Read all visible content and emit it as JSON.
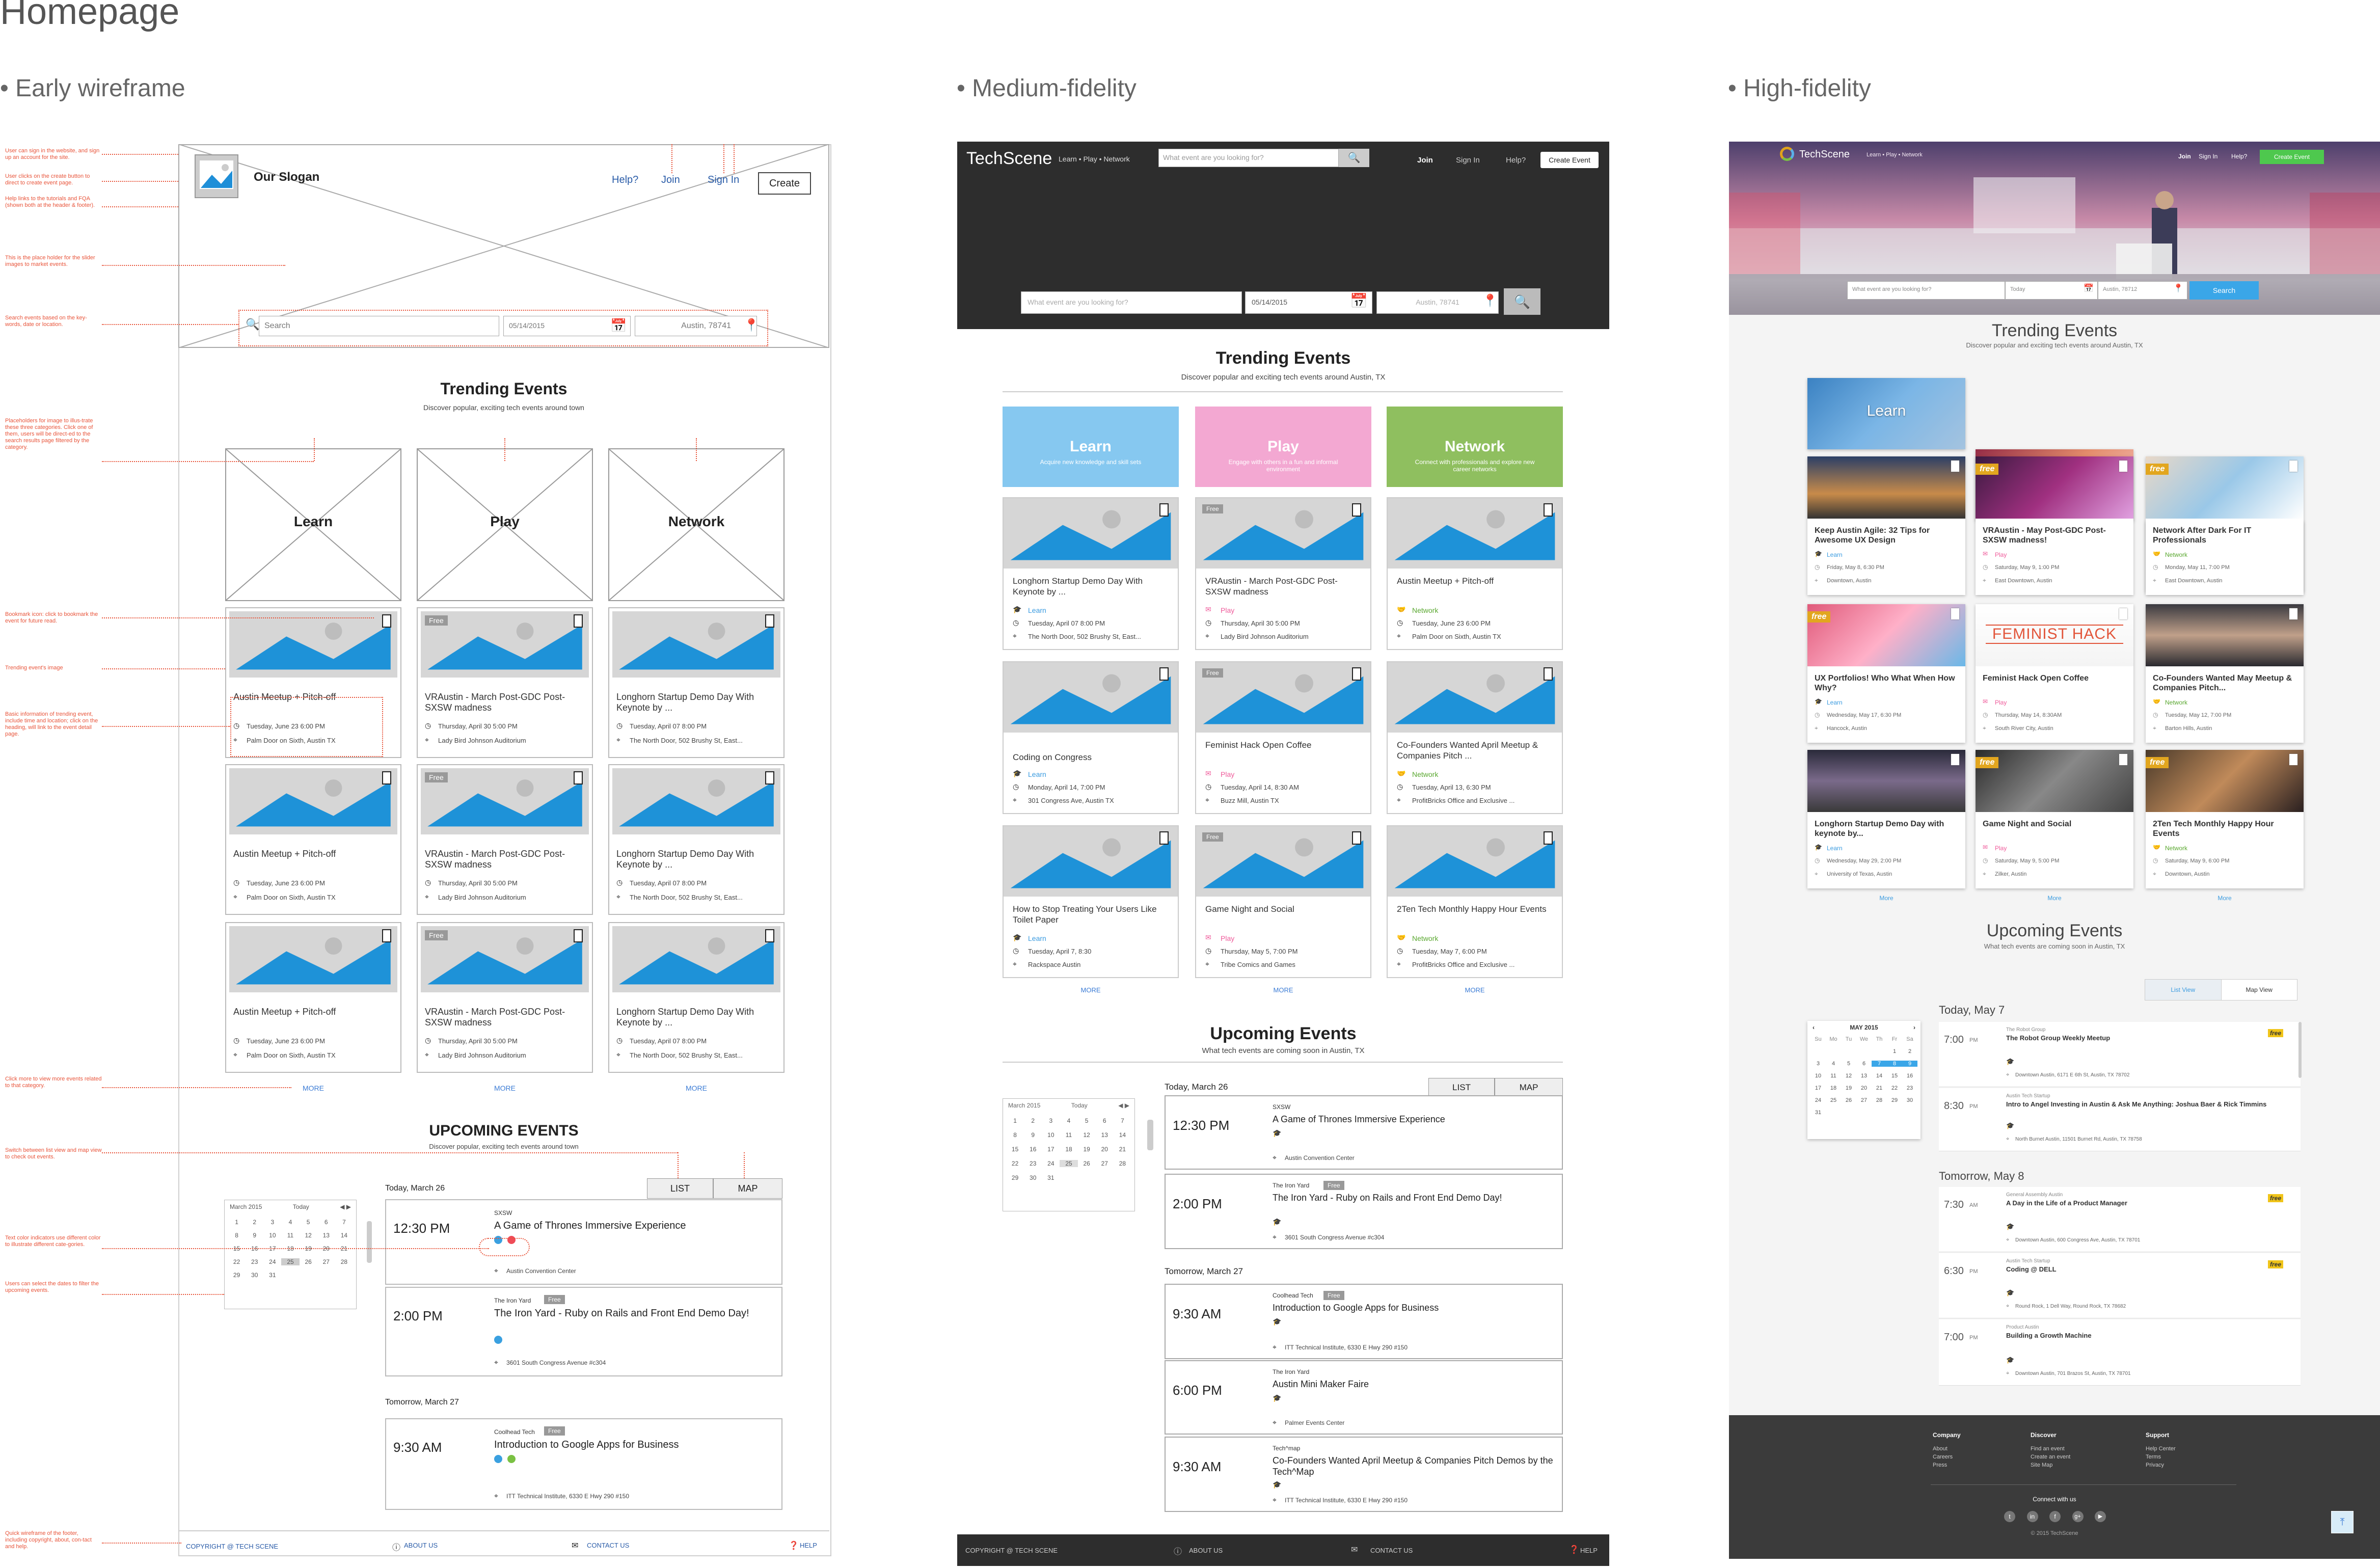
{
  "page_title": "Homepage",
  "columns": {
    "early": "• Early wireframe",
    "medium": "• Medium-fidelity",
    "high": "• High-fidelity"
  },
  "annotations": [
    "User can sign in the website, and sign up an account for the site.",
    "User clicks on the create button to direct to create event page.",
    "Help links to the tutorials and FQA (shown both at the header & footer).",
    "This is the place holder for the slider images to market events.",
    "Search events based on the key-words, date or location.",
    "Placeholders for image to illus-trate these three categories. Click one of them, users will be direct-ed to the search results page filtered by the category.",
    "Bookmark icon: click to bookmark the event for future read.",
    "Trending event's image",
    "Basic information of trending event, include time and location; click on the heading, will link to the event detail page.",
    "Click more to view more events related to that category.",
    "Switch between list view and map view to check out events.",
    "Text color indicators use different color to illustrate different cate-gories.",
    "Users can select the dates to filter the upcoming events.",
    "Quick wireframe of the footer, including copyright, about, con-tact and help."
  ],
  "wireframe": {
    "slogan": "Our Slogan",
    "nav": {
      "help": "Help?",
      "join": "Join",
      "signin": "Sign In",
      "create": "Create"
    },
    "search": {
      "placeholder": "Search",
      "date": "05/14/2015",
      "location": "Austin, 78741"
    },
    "trending": {
      "title": "Trending Events",
      "subtitle": "Discover popular, exciting tech events around town"
    },
    "categories": [
      "Learn",
      "Play",
      "Network"
    ],
    "cards": [
      [
        {
          "title": "Austin Meetup + Pitch-off",
          "time": "Tuesday, June 23 6:00 PM",
          "loc": "Palm Door on Sixth, Austin TX",
          "free": ""
        },
        {
          "title": "Austin Meetup + Pitch-off",
          "time": "Tuesday, June 23 6:00 PM",
          "loc": "Palm Door on Sixth, Austin TX",
          "free": ""
        },
        {
          "title": "Austin Meetup + Pitch-off",
          "time": "Tuesday, June 23 6:00 PM",
          "loc": "Palm Door on Sixth, Austin TX",
          "free": ""
        }
      ],
      [
        {
          "title": "VRAustin - March Post-GDC Post-SXSW madness",
          "time": "Thursday, April 30 5:00 PM",
          "loc": "Lady Bird Johnson Auditorium",
          "free": "Free"
        },
        {
          "title": "VRAustin - March Post-GDC Post-SXSW madness",
          "time": "Thursday, April 30 5:00 PM",
          "loc": "Lady Bird Johnson Auditorium",
          "free": "Free"
        },
        {
          "title": "VRAustin - March Post-GDC Post-SXSW madness",
          "time": "Thursday, April 30 5:00 PM",
          "loc": "Lady Bird Johnson Auditorium",
          "free": "Free"
        }
      ],
      [
        {
          "title": "Longhorn Startup Demo Day With Keynote by ...",
          "time": "Tuesday, April 07 8:00 PM",
          "loc": "The North Door, 502 Brushy St, East...",
          "free": ""
        },
        {
          "title": "Longhorn Startup Demo Day With Keynote by ...",
          "time": "Tuesday, April 07 8:00 PM",
          "loc": "The North Door, 502 Brushy St, East...",
          "free": ""
        },
        {
          "title": "Longhorn Startup Demo Day With Keynote by ...",
          "time": "Tuesday, April 07 8:00 PM",
          "loc": "The North Door, 502 Brushy St, East...",
          "free": ""
        }
      ]
    ],
    "more": "MORE",
    "upcoming": {
      "title": "UPCOMING EVENTS",
      "subtitle": "Discover popular, exciting tech events around town"
    },
    "list_label": "LIST",
    "map_label": "MAP",
    "calendar": {
      "month": "March 2015",
      "today": "Today",
      "days": [
        "1",
        "2",
        "3",
        "4",
        "5",
        "6",
        "7",
        "8",
        "9",
        "10",
        "11",
        "12",
        "13",
        "14",
        "15",
        "16",
        "17",
        "18",
        "19",
        "20",
        "21",
        "22",
        "23",
        "24",
        "25",
        "26",
        "27",
        "28",
        "29",
        "30",
        "31"
      ]
    },
    "day1": "Today, March 26",
    "day2": "Tomorrow, March 27",
    "events": [
      {
        "time": "12:30 PM",
        "org": "SXSW",
        "free": "",
        "title": "A Game of Thrones Immersive Experience",
        "loc": "Austin Convention Center"
      },
      {
        "time": "2:00 PM",
        "org": "The Iron Yard",
        "free": "Free",
        "title": "The Iron Yard - Ruby on Rails and Front End Demo Day!",
        "loc": "3601 South Congress Avenue #c304"
      },
      {
        "time": "9:30 AM",
        "org": "Coolhead Tech",
        "free": "Free",
        "title": "Introduction to Google Apps for Business",
        "loc": "ITT Technical Institute, 6330 E Hwy 290 #150"
      }
    ],
    "footer": {
      "copyright": "COPYRIGHT @ TECH SCENE",
      "about": "ABOUT US",
      "contact": "CONTACT US",
      "help": "HELP"
    }
  },
  "medium": {
    "logo": "TechScene",
    "tagline": "Learn • Play • Network",
    "search_placeholder": "What event are you looking for?",
    "nav": {
      "join": "Join",
      "signin": "Sign In",
      "help": "Help?",
      "create": "Create Event"
    },
    "hero_search": {
      "placeholder": "What event are you looking for?",
      "date": "05/14/2015",
      "location": "Austin, 78741"
    },
    "trending": {
      "title": "Trending Events",
      "subtitle": "Discover popular and exciting tech events around Austin, TX"
    },
    "tiles": [
      {
        "title": "Learn",
        "sub": "Acquire new knowledge and skill sets"
      },
      {
        "title": "Play",
        "sub": "Engage with others in a fun and informal environment"
      },
      {
        "title": "Network",
        "sub": "Connect with professionals and explore new career networks"
      }
    ],
    "cards": [
      [
        {
          "title": "Longhorn Startup Demo Day With Keynote by ...",
          "cat": "Learn",
          "time": "Tuesday, April 07 8:00 PM",
          "loc": "The North Door, 502 Brushy St, East...",
          "free": ""
        },
        {
          "title": "Coding on Congress",
          "cat": "Learn",
          "time": "Monday, April 14, 7:00 PM",
          "loc": "301 Congress Ave, Austin TX",
          "free": ""
        },
        {
          "title": "How to Stop Treating Your Users Like Toilet Paper",
          "cat": "Learn",
          "time": "Tuesday, April 7, 8:30",
          "loc": "Rackspace Austin",
          "free": ""
        }
      ],
      [
        {
          "title": "VRAustin - March Post-GDC Post-SXSW madness",
          "cat": "Play",
          "time": "Thursday, April 30 5:00 PM",
          "loc": "Lady Bird Johnson Auditorium",
          "free": "Free"
        },
        {
          "title": "Feminist Hack Open Coffee",
          "cat": "Play",
          "time": "Tuesday, April 14, 8:30 AM",
          "loc": "Buzz Mill, Austin TX",
          "free": "Free"
        },
        {
          "title": "Game Night and Social",
          "cat": "Play",
          "time": "Thursday, May 5, 7:00 PM",
          "loc": "Tribe Comics and Games",
          "free": "Free"
        }
      ],
      [
        {
          "title": "Austin Meetup + Pitch-off",
          "cat": "Network",
          "time": "Tuesday, June 23 6:00 PM",
          "loc": "Palm Door on Sixth, Austin TX",
          "free": ""
        },
        {
          "title": "Co-Founders Wanted April Meetup & Companies Pitch ...",
          "cat": "Network",
          "time": "Tuesday, April 13, 6:30 PM",
          "loc": "ProfitBricks Office and Exclusive ...",
          "free": ""
        },
        {
          "title": "2Ten Tech Monthly Happy Hour Events",
          "cat": "Network",
          "time": "Tuesday, May 7, 6:00 PM",
          "loc": "ProfitBricks Office and Exclusive ...",
          "free": ""
        }
      ]
    ],
    "more": "MORE",
    "upcoming": {
      "title": "Upcoming Events",
      "subtitle": "What tech events are coming soon in Austin, TX"
    },
    "list_label": "LIST",
    "map_label": "MAP",
    "calendar": {
      "month": "March 2015",
      "today": "Today"
    },
    "day1": "Today, March 26",
    "day2": "Tomorrow, March 27",
    "events": [
      {
        "time": "12:30 PM",
        "org": "SXSW",
        "free": "",
        "title": "A Game of Thrones Immersive Experience",
        "loc": "Austin Convention Center"
      },
      {
        "time": "2:00 PM",
        "org": "The Iron Yard",
        "free": "Free",
        "title": "The Iron Yard - Ruby on Rails and Front End Demo Day!",
        "loc": "3601 South Congress Avenue #c304"
      },
      {
        "time": "9:30 AM",
        "org": "Coolhead Tech",
        "free": "Free",
        "title": "Introduction to Google Apps for Business",
        "loc": "ITT Technical Institute, 6330 E Hwy 290 #150"
      },
      {
        "time": "6:00 PM",
        "org": "The Iron Yard",
        "free": "",
        "title": "Austin Mini Maker Faire",
        "loc": "Palmer Events Center"
      },
      {
        "time": "9:30 AM",
        "org": "Tech^map",
        "free": "",
        "title": "Co-Founders Wanted April Meetup & Companies Pitch Demos by the Tech^Map",
        "loc": "ITT Technical Institute, 6330 E Hwy 290 #150"
      }
    ],
    "footer": {
      "copyright": "COPYRIGHT @ TECH SCENE",
      "about": "ABOUT US",
      "contact": "CONTACT US",
      "help": "HELP"
    }
  },
  "high": {
    "logo": "TechScene",
    "tagline": "Learn • Play • Network",
    "nav": {
      "join": "Join",
      "signin": "Sign In",
      "help": "Help?",
      "create": "Create Event"
    },
    "hero_search": {
      "placeholder": "What event are you looking for?",
      "date": "Today",
      "location": "Austin, 78712",
      "button": "Search"
    },
    "trending": {
      "title": "Trending Events",
      "subtitle": "Discover popular and exciting tech events around Austin, TX"
    },
    "tiles": [
      "Learn",
      "Play",
      "Network"
    ],
    "cards": [
      [
        {
          "title": "Keep Austin Agile: 32 Tips for Awesome UX Design",
          "cat": "Learn",
          "time": "Friday, May 8, 6:30 PM",
          "loc": "Downtown, Austin",
          "free": ""
        },
        {
          "title": "UX Portfolios! Who What When How Why?",
          "cat": "Learn",
          "time": "Wednesday, May 17, 6:30 PM",
          "loc": "Hancock, Austin",
          "free": "free"
        },
        {
          "title": "Longhorn Startup Demo Day with keynote by...",
          "cat": "Learn",
          "time": "Wednesday, May 29, 2:00 PM",
          "loc": "University of Texas, Austin",
          "free": ""
        }
      ],
      [
        {
          "title": "VRAustin - May Post-GDC Post-SXSW madness!",
          "cat": "Play",
          "time": "Saturday, May 9, 1:00 PM",
          "loc": "East Downtown, Austin",
          "free": "free"
        },
        {
          "title": "Feminist Hack Open Coffee",
          "cat": "Play",
          "time": "Thursday, May 14, 8:30AM",
          "loc": "South River City, Austin",
          "free": ""
        },
        {
          "title": "Game Night and Social",
          "cat": "Play",
          "time": "Saturday, May 9, 5:00 PM",
          "loc": "Zilker, Austin",
          "free": "free"
        }
      ],
      [
        {
          "title": "Network After Dark For IT Professionals",
          "cat": "Network",
          "time": "Monday, May 11, 7:00 PM",
          "loc": "East Downtown, Austin",
          "free": "free"
        },
        {
          "title": "Co-Founders Wanted May Meetup & Companies Pitch...",
          "cat": "Network",
          "time": "Tuesday, May 12, 7:00 PM",
          "loc": "Barton Hills, Austin",
          "free": ""
        },
        {
          "title": "2Ten Tech Monthly Happy Hour Events",
          "cat": "Network",
          "time": "Saturday, May 9, 6:00 PM",
          "loc": "Downtown, Austin",
          "free": "free"
        }
      ]
    ],
    "feminist_hack_logo": "FEMINIST HACK",
    "more": "More",
    "upcoming": {
      "title": "Upcoming Events",
      "subtitle": "What tech events are coming soon in Austin, TX"
    },
    "list_view": "List View",
    "map_view": "Map View",
    "calendar": {
      "month": "MAY 2015",
      "weekdays": [
        "Su",
        "Mo",
        "Tu",
        "We",
        "Th",
        "Fr",
        "Sa"
      ]
    },
    "day1": "Today, May 7",
    "day2": "Tomorrow, May 8",
    "events": [
      {
        "time": "7:00",
        "ampm": "PM",
        "org": "The Robot Group",
        "title": "The Robot Group Weekly Meetup",
        "loc": "Downtown Austin, 6171 E 6th St, Austin, TX 78702",
        "free": "free"
      },
      {
        "time": "8:30",
        "ampm": "PM",
        "org": "Austin Tech Startup",
        "title": "Intro to Angel Investing in Austin & Ask Me Anything: Joshua Baer & Rick Timmins",
        "loc": "North Burnet Austin, 11501 Burnet Rd, Austin, TX 78758",
        "free": ""
      },
      {
        "time": "7:30",
        "ampm": "AM",
        "org": "General Assembly Austin",
        "title": "A Day in the Life of a Product Manager",
        "loc": "Downtown Austin, 600 Congress Ave, Austin, TX 78701",
        "free": "free"
      },
      {
        "time": "6:30",
        "ampm": "PM",
        "org": "Austin Tech Startup",
        "title": "Coding @ DELL",
        "loc": "Round Rock, 1 Dell Way, Round Rock, TX 78682",
        "free": "free"
      },
      {
        "time": "7:00",
        "ampm": "PM",
        "org": "Product Austin",
        "title": "Building a Growth Machine",
        "loc": "Downtown Austin, 701 Brazos St, Austin, TX 78701",
        "free": ""
      }
    ],
    "footer": {
      "company": {
        "h": "Company",
        "links": [
          "About",
          "Careers",
          "Press"
        ]
      },
      "discover": {
        "h": "Discover",
        "links": [
          "Find an event",
          "Create an event",
          "Site Map"
        ]
      },
      "support": {
        "h": "Support",
        "links": [
          "Help Center",
          "Terms",
          "Privacy"
        ]
      },
      "connect": "Connect with us",
      "copyright": "© 2015 TechScene"
    }
  }
}
